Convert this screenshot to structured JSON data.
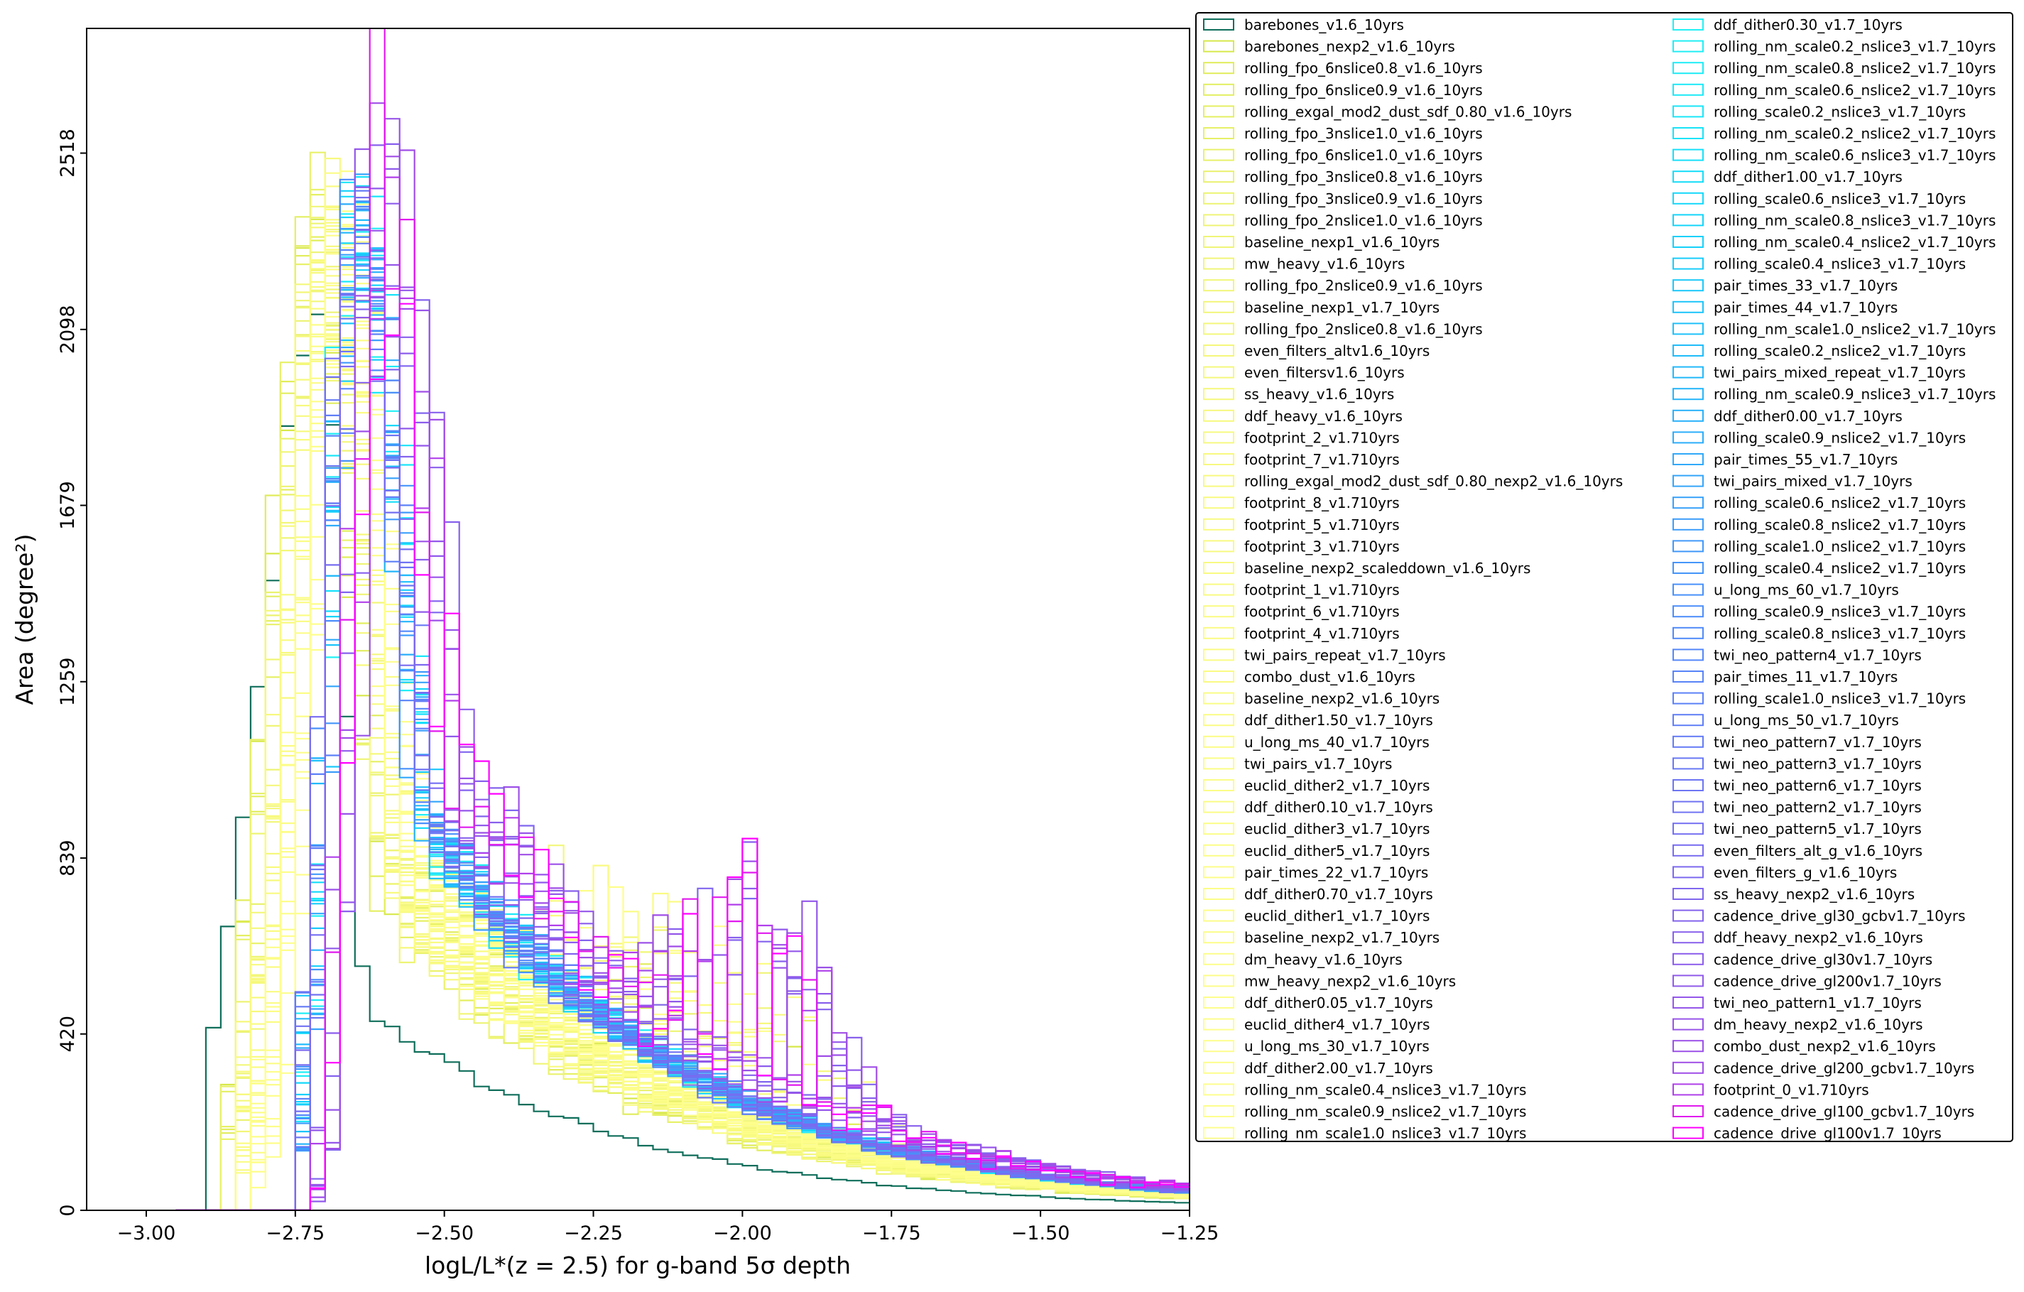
{
  "chart_data": {
    "type": "step-histogram",
    "xlabel": "logL/L*(z = 2.5) for g-band 5σ depth",
    "ylabel": "Area (degree²)",
    "xlim": [
      -3.1,
      -1.25
    ],
    "ylim": [
      0,
      2815
    ],
    "xticks": [
      -3.0,
      -2.75,
      -2.5,
      -2.25,
      -2.0,
      -1.75,
      -1.5,
      -1.25
    ],
    "xtick_labels": [
      "−3.00",
      "−2.75",
      "−2.50",
      "−2.25",
      "−2.00",
      "−1.75",
      "−1.50",
      "−1.25"
    ],
    "yticks": [
      0,
      420,
      839,
      1259,
      1679,
      2098,
      2518
    ],
    "ytick_labels": [
      "0",
      "420",
      "839",
      "1259",
      "1679",
      "2098",
      "2518"
    ],
    "bin_width": 0.025,
    "legend_placement": "outside right, two columns",
    "series_names": [
      "barebones_v1.6_10yrs",
      "barebones_nexp2_v1.6_10yrs",
      "rolling_fpo_6nslice0.8_v1.6_10yrs",
      "rolling_fpo_6nslice0.9_v1.6_10yrs",
      "rolling_exgal_mod2_dust_sdf_0.80_v1.6_10yrs",
      "rolling_fpo_3nslice1.0_v1.6_10yrs",
      "rolling_fpo_6nslice1.0_v1.6_10yrs",
      "rolling_fpo_3nslice0.8_v1.6_10yrs",
      "rolling_fpo_3nslice0.9_v1.6_10yrs",
      "rolling_fpo_2nslice1.0_v1.6_10yrs",
      "baseline_nexp1_v1.6_10yrs",
      "mw_heavy_v1.6_10yrs",
      "rolling_fpo_2nslice0.9_v1.6_10yrs",
      "baseline_nexp1_v1.7_10yrs",
      "rolling_fpo_2nslice0.8_v1.6_10yrs",
      "even_filters_altv1.6_10yrs",
      "even_filtersv1.6_10yrs",
      "ss_heavy_v1.6_10yrs",
      "ddf_heavy_v1.6_10yrs",
      "footprint_2_v1.710yrs",
      "footprint_7_v1.710yrs",
      "rolling_exgal_mod2_dust_sdf_0.80_nexp2_v1.6_10yrs",
      "footprint_8_v1.710yrs",
      "footprint_5_v1.710yrs",
      "footprint_3_v1.710yrs",
      "baseline_nexp2_scaleddown_v1.6_10yrs",
      "footprint_1_v1.710yrs",
      "footprint_6_v1.710yrs",
      "footprint_4_v1.710yrs",
      "twi_pairs_repeat_v1.7_10yrs",
      "combo_dust_v1.6_10yrs",
      "baseline_nexp2_v1.6_10yrs",
      "ddf_dither1.50_v1.7_10yrs",
      "u_long_ms_40_v1.7_10yrs",
      "twi_pairs_v1.7_10yrs",
      "euclid_dither2_v1.7_10yrs",
      "ddf_dither0.10_v1.7_10yrs",
      "euclid_dither3_v1.7_10yrs",
      "euclid_dither5_v1.7_10yrs",
      "pair_times_22_v1.7_10yrs",
      "ddf_dither0.70_v1.7_10yrs",
      "euclid_dither1_v1.7_10yrs",
      "baseline_nexp2_v1.7_10yrs",
      "dm_heavy_v1.6_10yrs",
      "mw_heavy_nexp2_v1.6_10yrs",
      "ddf_dither0.05_v1.7_10yrs",
      "euclid_dither4_v1.7_10yrs",
      "u_long_ms_30_v1.7_10yrs",
      "ddf_dither2.00_v1.7_10yrs",
      "rolling_nm_scale0.4_nslice3_v1.7_10yrs",
      "rolling_nm_scale0.9_nslice2_v1.7_10yrs",
      "rolling_nm_scale1.0_nslice3_v1.7_10yrs",
      "ddf_dither0.30_v1.7_10yrs",
      "rolling_nm_scale0.2_nslice3_v1.7_10yrs",
      "rolling_nm_scale0.8_nslice2_v1.7_10yrs",
      "rolling_nm_scale0.6_nslice2_v1.7_10yrs",
      "rolling_scale0.2_nslice3_v1.7_10yrs",
      "rolling_nm_scale0.2_nslice2_v1.7_10yrs",
      "rolling_nm_scale0.6_nslice3_v1.7_10yrs",
      "ddf_dither1.00_v1.7_10yrs",
      "rolling_scale0.6_nslice3_v1.7_10yrs",
      "rolling_nm_scale0.8_nslice3_v1.7_10yrs",
      "rolling_nm_scale0.4_nslice2_v1.7_10yrs",
      "rolling_scale0.4_nslice3_v1.7_10yrs",
      "pair_times_33_v1.7_10yrs",
      "pair_times_44_v1.7_10yrs",
      "rolling_nm_scale1.0_nslice2_v1.7_10yrs",
      "rolling_scale0.2_nslice2_v1.7_10yrs",
      "twi_pairs_mixed_repeat_v1.7_10yrs",
      "rolling_nm_scale0.9_nslice3_v1.7_10yrs",
      "ddf_dither0.00_v1.7_10yrs",
      "rolling_scale0.9_nslice2_v1.7_10yrs",
      "pair_times_55_v1.7_10yrs",
      "twi_pairs_mixed_v1.7_10yrs",
      "rolling_scale0.6_nslice2_v1.7_10yrs",
      "rolling_scale0.8_nslice2_v1.7_10yrs",
      "rolling_scale1.0_nslice2_v1.7_10yrs",
      "rolling_scale0.4_nslice2_v1.7_10yrs",
      "u_long_ms_60_v1.7_10yrs",
      "rolling_scale0.9_nslice3_v1.7_10yrs",
      "rolling_scale0.8_nslice3_v1.7_10yrs",
      "twi_neo_pattern4_v1.7_10yrs",
      "pair_times_11_v1.7_10yrs",
      "rolling_scale1.0_nslice3_v1.7_10yrs",
      "u_long_ms_50_v1.7_10yrs",
      "twi_neo_pattern7_v1.7_10yrs",
      "twi_neo_pattern3_v1.7_10yrs",
      "twi_neo_pattern6_v1.7_10yrs",
      "twi_neo_pattern2_v1.7_10yrs",
      "twi_neo_pattern5_v1.7_10yrs",
      "even_filters_alt_g_v1.6_10yrs",
      "even_filters_g_v1.6_10yrs",
      "ss_heavy_nexp2_v1.6_10yrs",
      "cadence_drive_gl30_gcbv1.7_10yrs",
      "ddf_heavy_nexp2_v1.6_10yrs",
      "cadence_drive_gl30v1.7_10yrs",
      "cadence_drive_gl200v1.7_10yrs",
      "twi_neo_pattern1_v1.7_10yrs",
      "dm_heavy_nexp2_v1.6_10yrs",
      "combo_dust_nexp2_v1.6_10yrs",
      "cadence_drive_gl200_gcbv1.7_10yrs",
      "footprint_0_v1.710yrs",
      "cadence_drive_gl100_gcbv1.7_10yrs",
      "cadence_drive_gl100v1.7_10yrs"
    ],
    "series_colors": [
      "#0f6e5a",
      "#d7e84a",
      "#e0ec5a",
      "#e2ee5e",
      "#e4ef62",
      "#e6f066",
      "#e8f16a",
      "#eaf26e",
      "#ecf372",
      "#eef474",
      "#eff576",
      "#f0f577",
      "#f1f678",
      "#f2f679",
      "#f3f77a",
      "#f4f77b",
      "#f5f87c",
      "#f5f87c",
      "#f6f87d",
      "#f6f97e",
      "#f7f97e",
      "#f7f97f",
      "#f8fa7f",
      "#f8fa80",
      "#f8fa80",
      "#f9fa81",
      "#f9fb81",
      "#f9fb82",
      "#fafb82",
      "#fafb83",
      "#fafb83",
      "#fafc84",
      "#fbfc84",
      "#fbfc85",
      "#fbfc85",
      "#fbfc86",
      "#fbfc86",
      "#fcfd87",
      "#fcfd87",
      "#fcfd88",
      "#fcfd88",
      "#fcfd89",
      "#fcfd89",
      "#fdfd8a",
      "#fdfd8a",
      "#fdfe8b",
      "#fdfe8b",
      "#fdfe8c",
      "#fdfe8c",
      "#fefe8d",
      "#fefe8d",
      "#fefe8e",
      "#22f0f4",
      "#20eef5",
      "#1eecf6",
      "#1ce9f7",
      "#1ae6f8",
      "#18e3f8",
      "#16e0f9",
      "#14ddf9",
      "#14d9fa",
      "#14d5fa",
      "#16d1fa",
      "#18cdfa",
      "#1ac9fa",
      "#1cc5fa",
      "#1ec1fa",
      "#20bdfa",
      "#22b9fa",
      "#24b5fa",
      "#28b1fa",
      "#2cadfa",
      "#30a9fa",
      "#34a5fa",
      "#38a1fa",
      "#3c9dfa",
      "#4099fa",
      "#4495fa",
      "#4891fa",
      "#4c8dfa",
      "#508af9",
      "#5487f9",
      "#5884f8",
      "#5c81f7",
      "#607ef6",
      "#647bf5",
      "#6878f4",
      "#6c75f3",
      "#7072f2",
      "#746ff1",
      "#786cf0",
      "#7c69ef",
      "#8066ee",
      "#8463ed",
      "#8860ec",
      "#8c5deb",
      "#905aea",
      "#9457e9",
      "#9854e8",
      "#9c51e7",
      "#a04ee6",
      "#b040ea",
      "#e01aee",
      "#ff00ff"
    ]
  }
}
